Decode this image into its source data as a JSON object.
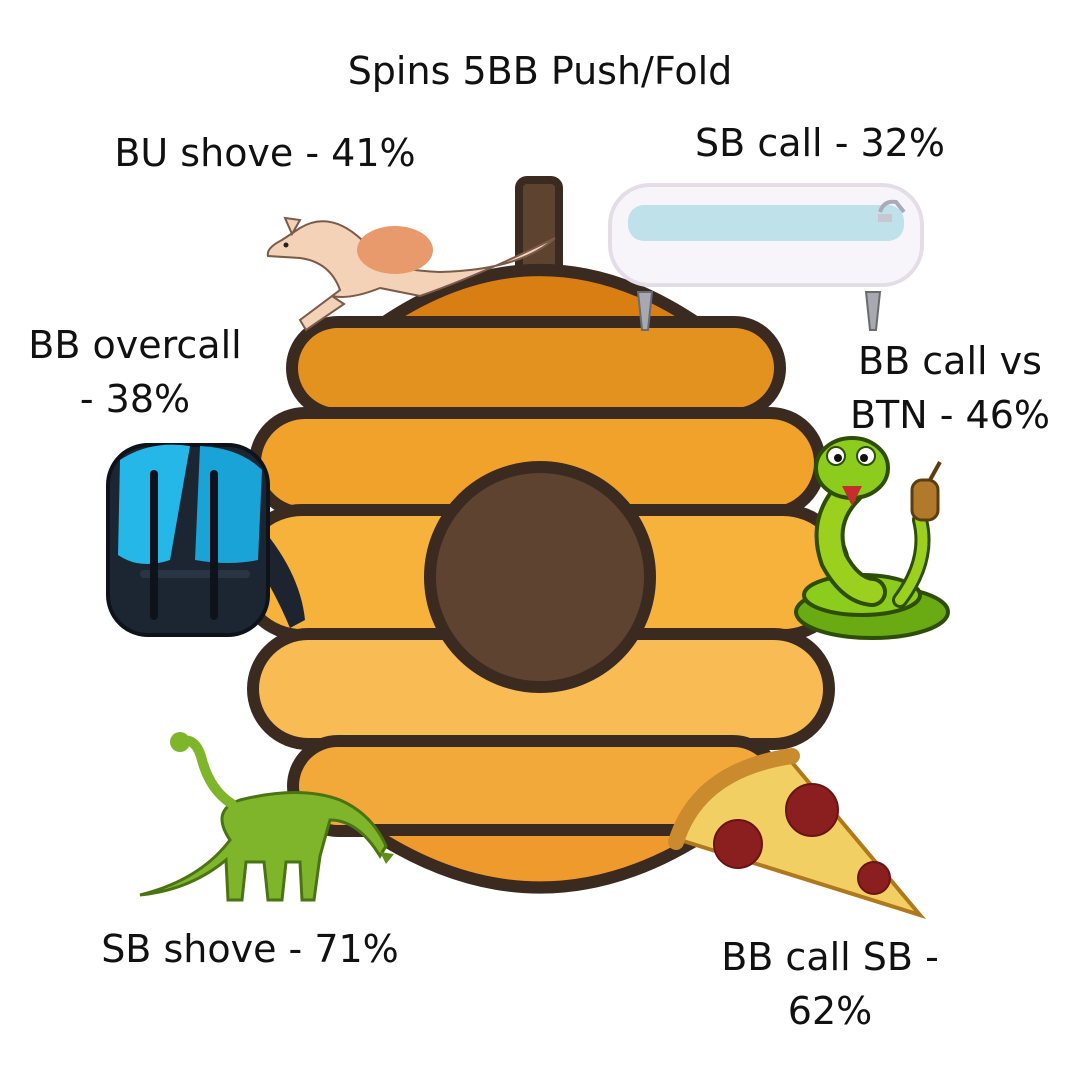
{
  "title": "Spins 5BB Push/Fold",
  "labels": {
    "bu_shove": "BU shove - 41%",
    "sb_call": "SB call - 32%",
    "bb_overcall_line1": "BB overcall",
    "bb_overcall_line2": "- 38%",
    "bb_call_btn_line1": "BB call vs",
    "bb_call_btn_line2": "BTN - 46%",
    "sb_shove": "SB shove - 71%",
    "bb_call_sb_line1": "BB call SB -",
    "bb_call_sb_line2": "62%"
  },
  "icons": [
    "beehive-icon",
    "kangaroo-icon",
    "bathtub-icon",
    "backpack-icon",
    "snake-icon",
    "dinosaur-icon",
    "pizza-slice-icon"
  ],
  "colors": {
    "hive_outline": "#3b2a20",
    "hive_band_dark": "#e08a1e",
    "hive_band_light": "#f9bc55",
    "hive_hole": "#5e4330",
    "hive_handle": "#5e4330"
  }
}
